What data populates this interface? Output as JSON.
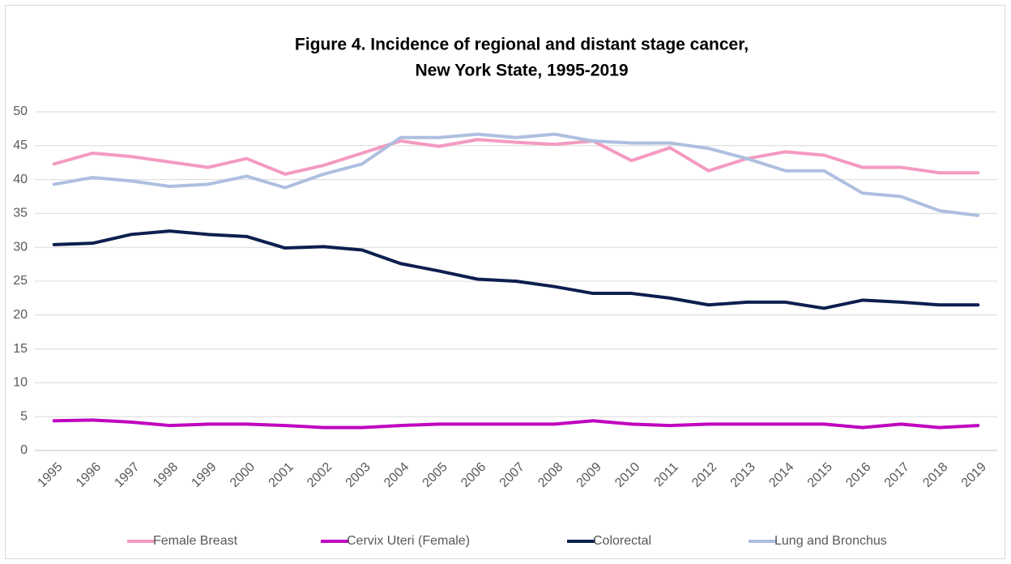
{
  "chart_data": {
    "type": "line",
    "title": [
      "Figure 4. Incidence of regional and distant stage cancer,",
      "New York State, 1995-2019"
    ],
    "categories": [
      "1995",
      "1996",
      "1997",
      "1998",
      "1999",
      "2000",
      "2001",
      "2002",
      "2003",
      "2004",
      "2005",
      "2006",
      "2007",
      "2008",
      "2009",
      "2010",
      "2011",
      "2012",
      "2013",
      "2014",
      "2015",
      "2016",
      "2017",
      "2018",
      "2019"
    ],
    "ylim": [
      0,
      50
    ],
    "yticks": [
      0,
      5,
      10,
      15,
      20,
      25,
      30,
      35,
      40,
      45,
      50
    ],
    "grid": true,
    "legend": "bottom",
    "series": [
      {
        "name": "Female Breast",
        "color": "#f49ac1",
        "values": [
          42.3,
          43.9,
          43.4,
          42.6,
          41.8,
          43.1,
          40.8,
          42.1,
          43.9,
          45.7,
          44.9,
          45.9,
          45.5,
          45.2,
          45.7,
          42.8,
          44.7,
          41.3,
          43.1,
          44.1,
          43.6,
          41.8,
          41.8,
          41.0,
          41.0
        ]
      },
      {
        "name": "Cervix Uteri (Female)",
        "color": "#c000c0",
        "values": [
          4.4,
          4.5,
          4.2,
          3.7,
          3.9,
          3.9,
          3.7,
          3.4,
          3.4,
          3.7,
          3.9,
          3.9,
          3.9,
          3.9,
          4.4,
          3.9,
          3.7,
          3.9,
          3.9,
          3.9,
          3.9,
          3.4,
          3.9,
          3.4,
          3.7
        ]
      },
      {
        "name": "Colorectal",
        "color": "#0d1f4f",
        "values": [
          30.4,
          30.6,
          31.9,
          32.4,
          31.9,
          31.6,
          29.9,
          30.1,
          29.6,
          27.6,
          26.5,
          25.3,
          25.0,
          24.2,
          23.2,
          23.2,
          22.5,
          21.5,
          21.9,
          21.9,
          21.0,
          22.2,
          21.9,
          21.5,
          21.5
        ]
      },
      {
        "name": "Lung and Bronchus",
        "color": "#aebfe0",
        "values": [
          39.3,
          40.3,
          39.8,
          39.0,
          39.3,
          40.5,
          38.8,
          40.8,
          42.3,
          46.2,
          46.2,
          46.7,
          46.2,
          46.7,
          45.7,
          45.4,
          45.4,
          44.6,
          43.1,
          41.3,
          41.3,
          38.0,
          37.5,
          35.4,
          34.7
        ]
      }
    ]
  }
}
